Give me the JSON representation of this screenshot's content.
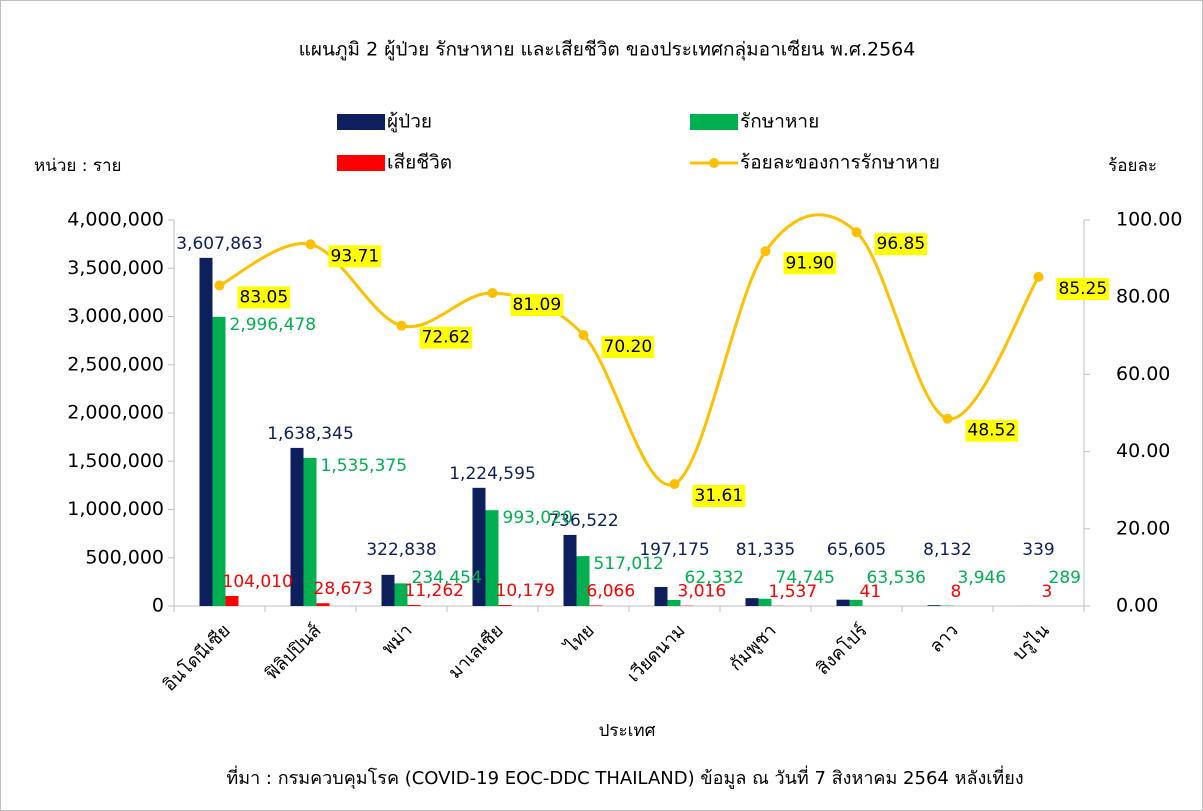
{
  "chart_data": {
    "type": "bar",
    "title": "แผนภูมิ 2 ผู้ป่วย รักษาหาย และเสียชีวิต ของประเทศกลุ่มอาเซียน พ.ศ.2564",
    "ylabel": "หน่วย : ราย",
    "y2label": "ร้อยละ",
    "xlabel": "ประเทศ",
    "source": "ที่มา : กรมควบคุมโรค (COVID-19 EOC-DDC THAILAND)  ข้อมูล ณ วันที่ 7 สิงหาคม 2564 หลังเที่ยง",
    "categories": [
      "อินโดนีเซีย",
      "ฟิลิปปินส์",
      "พม่า",
      "มาเลเซีย",
      "ไทย",
      "เวียดนาม",
      "กัมพูชา",
      "สิงคโปร์",
      "ลาว",
      "บรูไน"
    ],
    "series": [
      {
        "name": "ผู้ป่วย",
        "color": "#0d1f5c",
        "values": [
          3607863,
          1638345,
          322838,
          1224595,
          736522,
          197175,
          81335,
          65605,
          8132,
          339
        ],
        "value_labels": [
          "3,607,863",
          "1,638,345",
          "322,838",
          "1,224,595",
          "736,522",
          "197,175",
          "81,335",
          "65,605",
          "8,132",
          "339"
        ]
      },
      {
        "name": "รักษาหาย",
        "color": "#00b050",
        "values": [
          2996478,
          1535375,
          234454,
          993020,
          517012,
          62332,
          74745,
          63536,
          3946,
          289
        ],
        "value_labels": [
          "2,996,478",
          "1,535,375",
          "234,454",
          "993,020",
          "517,012",
          "62,332",
          "74,745",
          "63,536",
          "3,946",
          "289"
        ]
      },
      {
        "name": "เสียชีวิต",
        "color": "#ff0000",
        "values": [
          104010,
          28673,
          11262,
          10179,
          6066,
          3016,
          1537,
          41,
          8,
          3
        ],
        "value_labels": [
          "104,010",
          "28,673",
          "11,262",
          "10,179",
          "6,066",
          "3,016",
          "1,537",
          "41",
          "8",
          "3"
        ]
      },
      {
        "name": "ร้อยละของการรักษาหาย",
        "type": "line",
        "axis": "y2",
        "color": "#ffc000",
        "values": [
          83.05,
          93.71,
          72.62,
          81.09,
          70.2,
          31.61,
          91.9,
          96.85,
          48.52,
          85.25
        ],
        "value_labels": [
          "83.05",
          "93.71",
          "72.62",
          "81.09",
          "70.20",
          "31.61",
          "91.90",
          "96.85",
          "48.52",
          "85.25"
        ]
      }
    ],
    "ylim": [
      0,
      4000000
    ],
    "yticks": [
      0,
      {
        "value": 500000,
        "label": "500,000"
      },
      {
        "value": 1000000,
        "label": "1,000,000"
      },
      {
        "value": 1500000,
        "label": "1,500,000"
      },
      {
        "value": 2000000,
        "label": "2,000,000"
      },
      {
        "value": 2500000,
        "label": "2,500,000"
      },
      {
        "value": 3000000,
        "label": "3,000,000"
      },
      {
        "value": 3500000,
        "label": "3,500,000"
      },
      {
        "value": 4000000,
        "label": "4,000,000"
      }
    ],
    "y2lim": [
      0,
      100
    ],
    "y2ticks": [
      {
        "value": 0,
        "label": "0.00"
      },
      {
        "value": 20,
        "label": "20.00"
      },
      {
        "value": 40,
        "label": "40.00"
      },
      {
        "value": 60,
        "label": "60.00"
      },
      {
        "value": 80,
        "label": "80.00"
      },
      {
        "value": 100,
        "label": "100.00"
      }
    ]
  }
}
